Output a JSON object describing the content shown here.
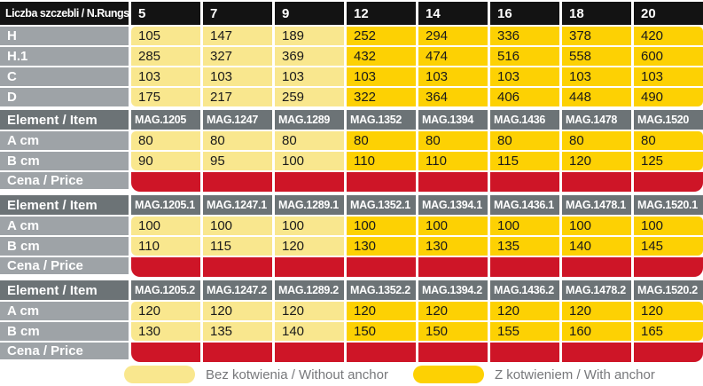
{
  "palette": {
    "header_black": "#131313",
    "item_header_gray": "#6c7376",
    "row_label_gray": "#9ea3a7",
    "without_anchor_yellow": "#f9e78e",
    "with_anchor_gold": "#fdd103",
    "price_red": "#ce1527",
    "legend_text_gray": "#77787b"
  },
  "anchor_split_index": 3,
  "rungs_table": {
    "header_label": "Liczba szczebli / N.Rungs",
    "columns": [
      "5",
      "7",
      "9",
      "12",
      "14",
      "16",
      "18",
      "20"
    ],
    "rows": [
      {
        "label": "H",
        "values": [
          105,
          147,
          189,
          252,
          294,
          336,
          378,
          420
        ]
      },
      {
        "label": "H.1",
        "values": [
          285,
          327,
          369,
          432,
          474,
          516,
          558,
          600
        ]
      },
      {
        "label": "C",
        "values": [
          103,
          103,
          103,
          103,
          103,
          103,
          103,
          103
        ]
      },
      {
        "label": "D",
        "values": [
          175,
          217,
          259,
          322,
          364,
          406,
          448,
          490
        ]
      }
    ]
  },
  "sections": [
    {
      "header_label": "Element / Item",
      "items": [
        "MAG.1205",
        "MAG.1247",
        "MAG.1289",
        "MAG.1352",
        "MAG.1394",
        "MAG.1436",
        "MAG.1478",
        "MAG.1520"
      ],
      "rows": [
        {
          "label": "A cm",
          "values": [
            80,
            80,
            80,
            80,
            80,
            80,
            80,
            80
          ]
        },
        {
          "label": "B cm",
          "values": [
            90,
            95,
            100,
            110,
            110,
            115,
            120,
            125
          ]
        }
      ],
      "price_label": "Cena / Price"
    },
    {
      "header_label": "Element / Item",
      "items": [
        "MAG.1205.1",
        "MAG.1247.1",
        "MAG.1289.1",
        "MAG.1352.1",
        "MAG.1394.1",
        "MAG.1436.1",
        "MAG.1478.1",
        "MAG.1520.1"
      ],
      "rows": [
        {
          "label": "A cm",
          "values": [
            100,
            100,
            100,
            100,
            100,
            100,
            100,
            100
          ]
        },
        {
          "label": "B cm",
          "values": [
            110,
            115,
            120,
            130,
            130,
            135,
            140,
            145
          ]
        }
      ],
      "price_label": "Cena / Price"
    },
    {
      "header_label": "Element / Item",
      "items": [
        "MAG.1205.2",
        "MAG.1247.2",
        "MAG.1289.2",
        "MAG.1352.2",
        "MAG.1394.2",
        "MAG.1436.2",
        "MAG.1478.2",
        "MAG.1520.2"
      ],
      "rows": [
        {
          "label": "A cm",
          "values": [
            120,
            120,
            120,
            120,
            120,
            120,
            120,
            120
          ]
        },
        {
          "label": "B cm",
          "values": [
            130,
            135,
            140,
            150,
            150,
            155,
            160,
            165
          ]
        }
      ],
      "price_label": "Cena / Price"
    }
  ],
  "legend": [
    {
      "swatch": "pale",
      "label": "Bez kotwienia / Without anchor"
    },
    {
      "swatch": "gold",
      "label": "Z kotwieniem / With anchor"
    }
  ]
}
